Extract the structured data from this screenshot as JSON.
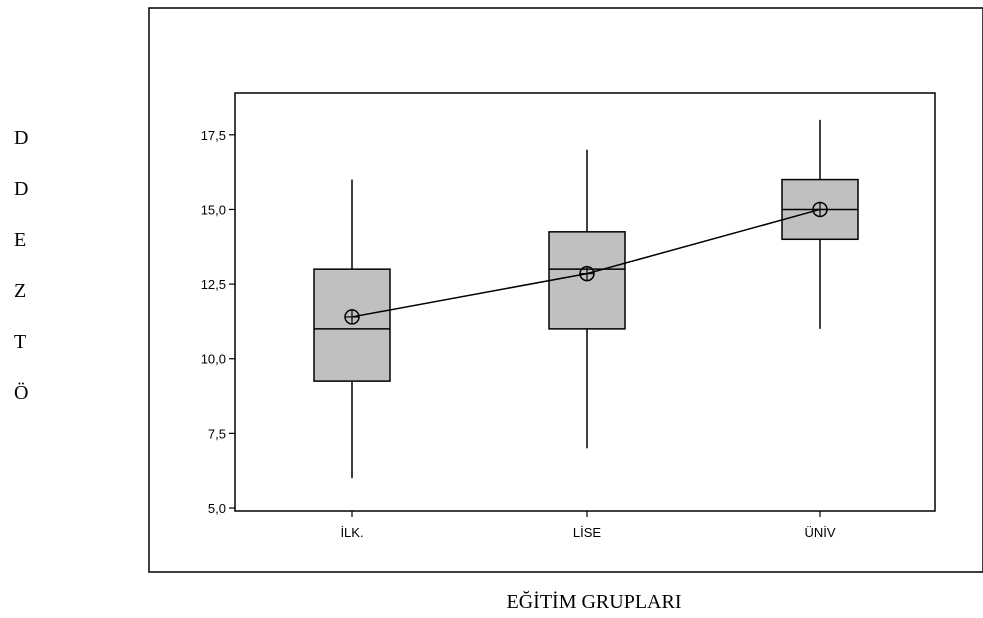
{
  "chart_data": {
    "type": "box",
    "title": "",
    "xlabel": "EĞİTİM GRUPLARI",
    "ylabel_letters": [
      "D",
      "D",
      "E",
      "Z",
      "T",
      "Ö"
    ],
    "categories": [
      "İLK.",
      "LİSE",
      "ÜNİV"
    ],
    "yticks": [
      "5,0",
      "7,5",
      "10,0",
      "12,5",
      "15,0",
      "17,5"
    ],
    "ytick_values": [
      5.0,
      7.5,
      10.0,
      12.5,
      15.0,
      17.5
    ],
    "ylim": [
      4.9,
      18.9
    ],
    "boxes": [
      {
        "category": "İLK.",
        "min": 6.0,
        "q1": 9.25,
        "median": 11.0,
        "q3": 13.0,
        "max": 16.0,
        "mean": 11.4
      },
      {
        "category": "LİSE",
        "min": 7.0,
        "q1": 11.0,
        "median": 13.0,
        "q3": 14.25,
        "max": 17.0,
        "mean": 12.85
      },
      {
        "category": "ÜNİV",
        "min": 11.0,
        "q1": 14.0,
        "median": 15.0,
        "q3": 16.0,
        "max": 18.0,
        "mean": 15.0
      }
    ],
    "mean_line": true,
    "box_fill": "#c0c0c0",
    "grid": false
  }
}
